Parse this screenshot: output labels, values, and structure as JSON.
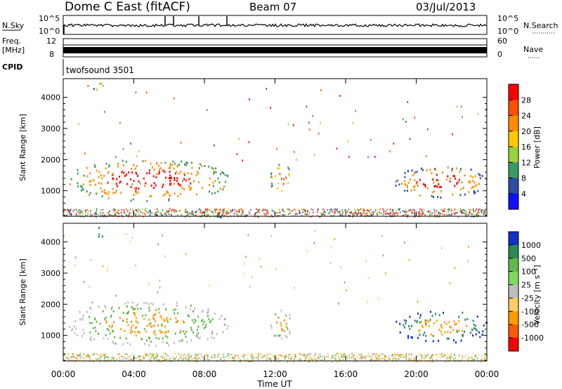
{
  "header": {
    "station": "Dome C East (fitACF)",
    "beam": "Beam 07",
    "date": "03/Jul/2013"
  },
  "top_panels": {
    "nsky_label": "N.Sky",
    "nsky_ticks": [
      "10^5",
      "10^0"
    ],
    "nsearch_label": "N.Search",
    "freq_label_1": "Freq.",
    "freq_label_2": "[MHz]",
    "freq_ticks": [
      "12",
      "8"
    ],
    "nave_label": "Nave",
    "nave_ticks": [
      "60",
      "0"
    ],
    "cpid_label": "CPID",
    "cpid_value": "twofsound 3501"
  },
  "chart_data": [
    {
      "type": "heatmap",
      "name": "power",
      "ylabel": "Slant Range [km]",
      "xlabel": "Time UT",
      "x_ticks": [
        "00:00",
        "04:00",
        "08:00",
        "12:00",
        "16:00",
        "20:00",
        "00:00"
      ],
      "x_range_hours": [
        0,
        24
      ],
      "y_ticks": [
        1000,
        2000,
        3000,
        4000
      ],
      "y_range": [
        180,
        4600
      ],
      "colorbar_label": "Power [dB]",
      "colorbar_ticks": [
        "28",
        "24",
        "20",
        "16",
        "12",
        "8",
        "4"
      ],
      "colorbar_colors": [
        "#ff0000",
        "#ff5000",
        "#ff8c00",
        "#ffc800",
        "#9bd33b",
        "#3c9a5f",
        "#2a4fa0",
        "#1010ff"
      ],
      "blobs": [
        {
          "t0": 0.3,
          "t1": 9.3,
          "r0": 700,
          "r1": 2000,
          "core": "#ff0000",
          "edge": "#ff8c00",
          "outer": "#3c9a5f"
        },
        {
          "t0": 8.0,
          "t1": 9.6,
          "r0": 180,
          "r1": 500,
          "core": "#ff0000",
          "edge": "#ff8c00",
          "outer": "#2a4fa0"
        },
        {
          "t0": 11.7,
          "t1": 12.9,
          "r0": 900,
          "r1": 1900,
          "core": "#ff5000",
          "edge": "#ffc800",
          "outer": "#3c9a5f"
        },
        {
          "t0": 18.8,
          "t1": 24.0,
          "r0": 800,
          "r1": 1800,
          "core": "#ff0000",
          "edge": "#ff8c00",
          "outer": "#2a4fa0"
        },
        {
          "t0": 1.7,
          "t1": 2.4,
          "r0": 4200,
          "r1": 4500,
          "core": "#3c9a5f",
          "edge": "#9bd33b",
          "outer": "#2a4fa0"
        }
      ]
    },
    {
      "type": "heatmap",
      "name": "velocity",
      "ylabel": "Slant Range [km]",
      "xlabel": "Time UT",
      "x_ticks": [
        "00:00",
        "04:00",
        "08:00",
        "12:00",
        "16:00",
        "20:00",
        "00:00"
      ],
      "x_range_hours": [
        0,
        24
      ],
      "y_ticks": [
        1000,
        2000,
        3000,
        4000
      ],
      "y_range": [
        180,
        4600
      ],
      "colorbar_label": "Velocity [m s⁻¹]",
      "colorbar_ticks": [
        "1000",
        "500",
        "100",
        "25",
        "-25",
        "-100",
        "-500",
        "-1000"
      ],
      "colorbar_colors": [
        "#1030c8",
        "#2a8a55",
        "#62b84a",
        "#7ed95c",
        "#bdbdbd",
        "#ffcc66",
        "#ff9a00",
        "#ff5a00",
        "#ff0000"
      ],
      "blobs": [
        {
          "t0": 0.3,
          "t1": 9.3,
          "r0": 700,
          "r1": 2100,
          "core": "#ff9a00",
          "edge": "#62b84a",
          "outer": "#bdbdbd"
        },
        {
          "t0": 11.7,
          "t1": 12.9,
          "r0": 900,
          "r1": 1900,
          "core": "#ff9a00",
          "edge": "#62b84a",
          "outer": "#bdbdbd"
        },
        {
          "t0": 18.8,
          "t1": 24.0,
          "r0": 800,
          "r1": 1800,
          "core": "#ff9a00",
          "edge": "#2a8a55",
          "outer": "#1030c8"
        },
        {
          "t0": 1.7,
          "t1": 2.4,
          "r0": 4200,
          "r1": 4500,
          "core": "#62b84a",
          "edge": "#bdbdbd",
          "outer": "#2a8a55"
        }
      ]
    }
  ]
}
